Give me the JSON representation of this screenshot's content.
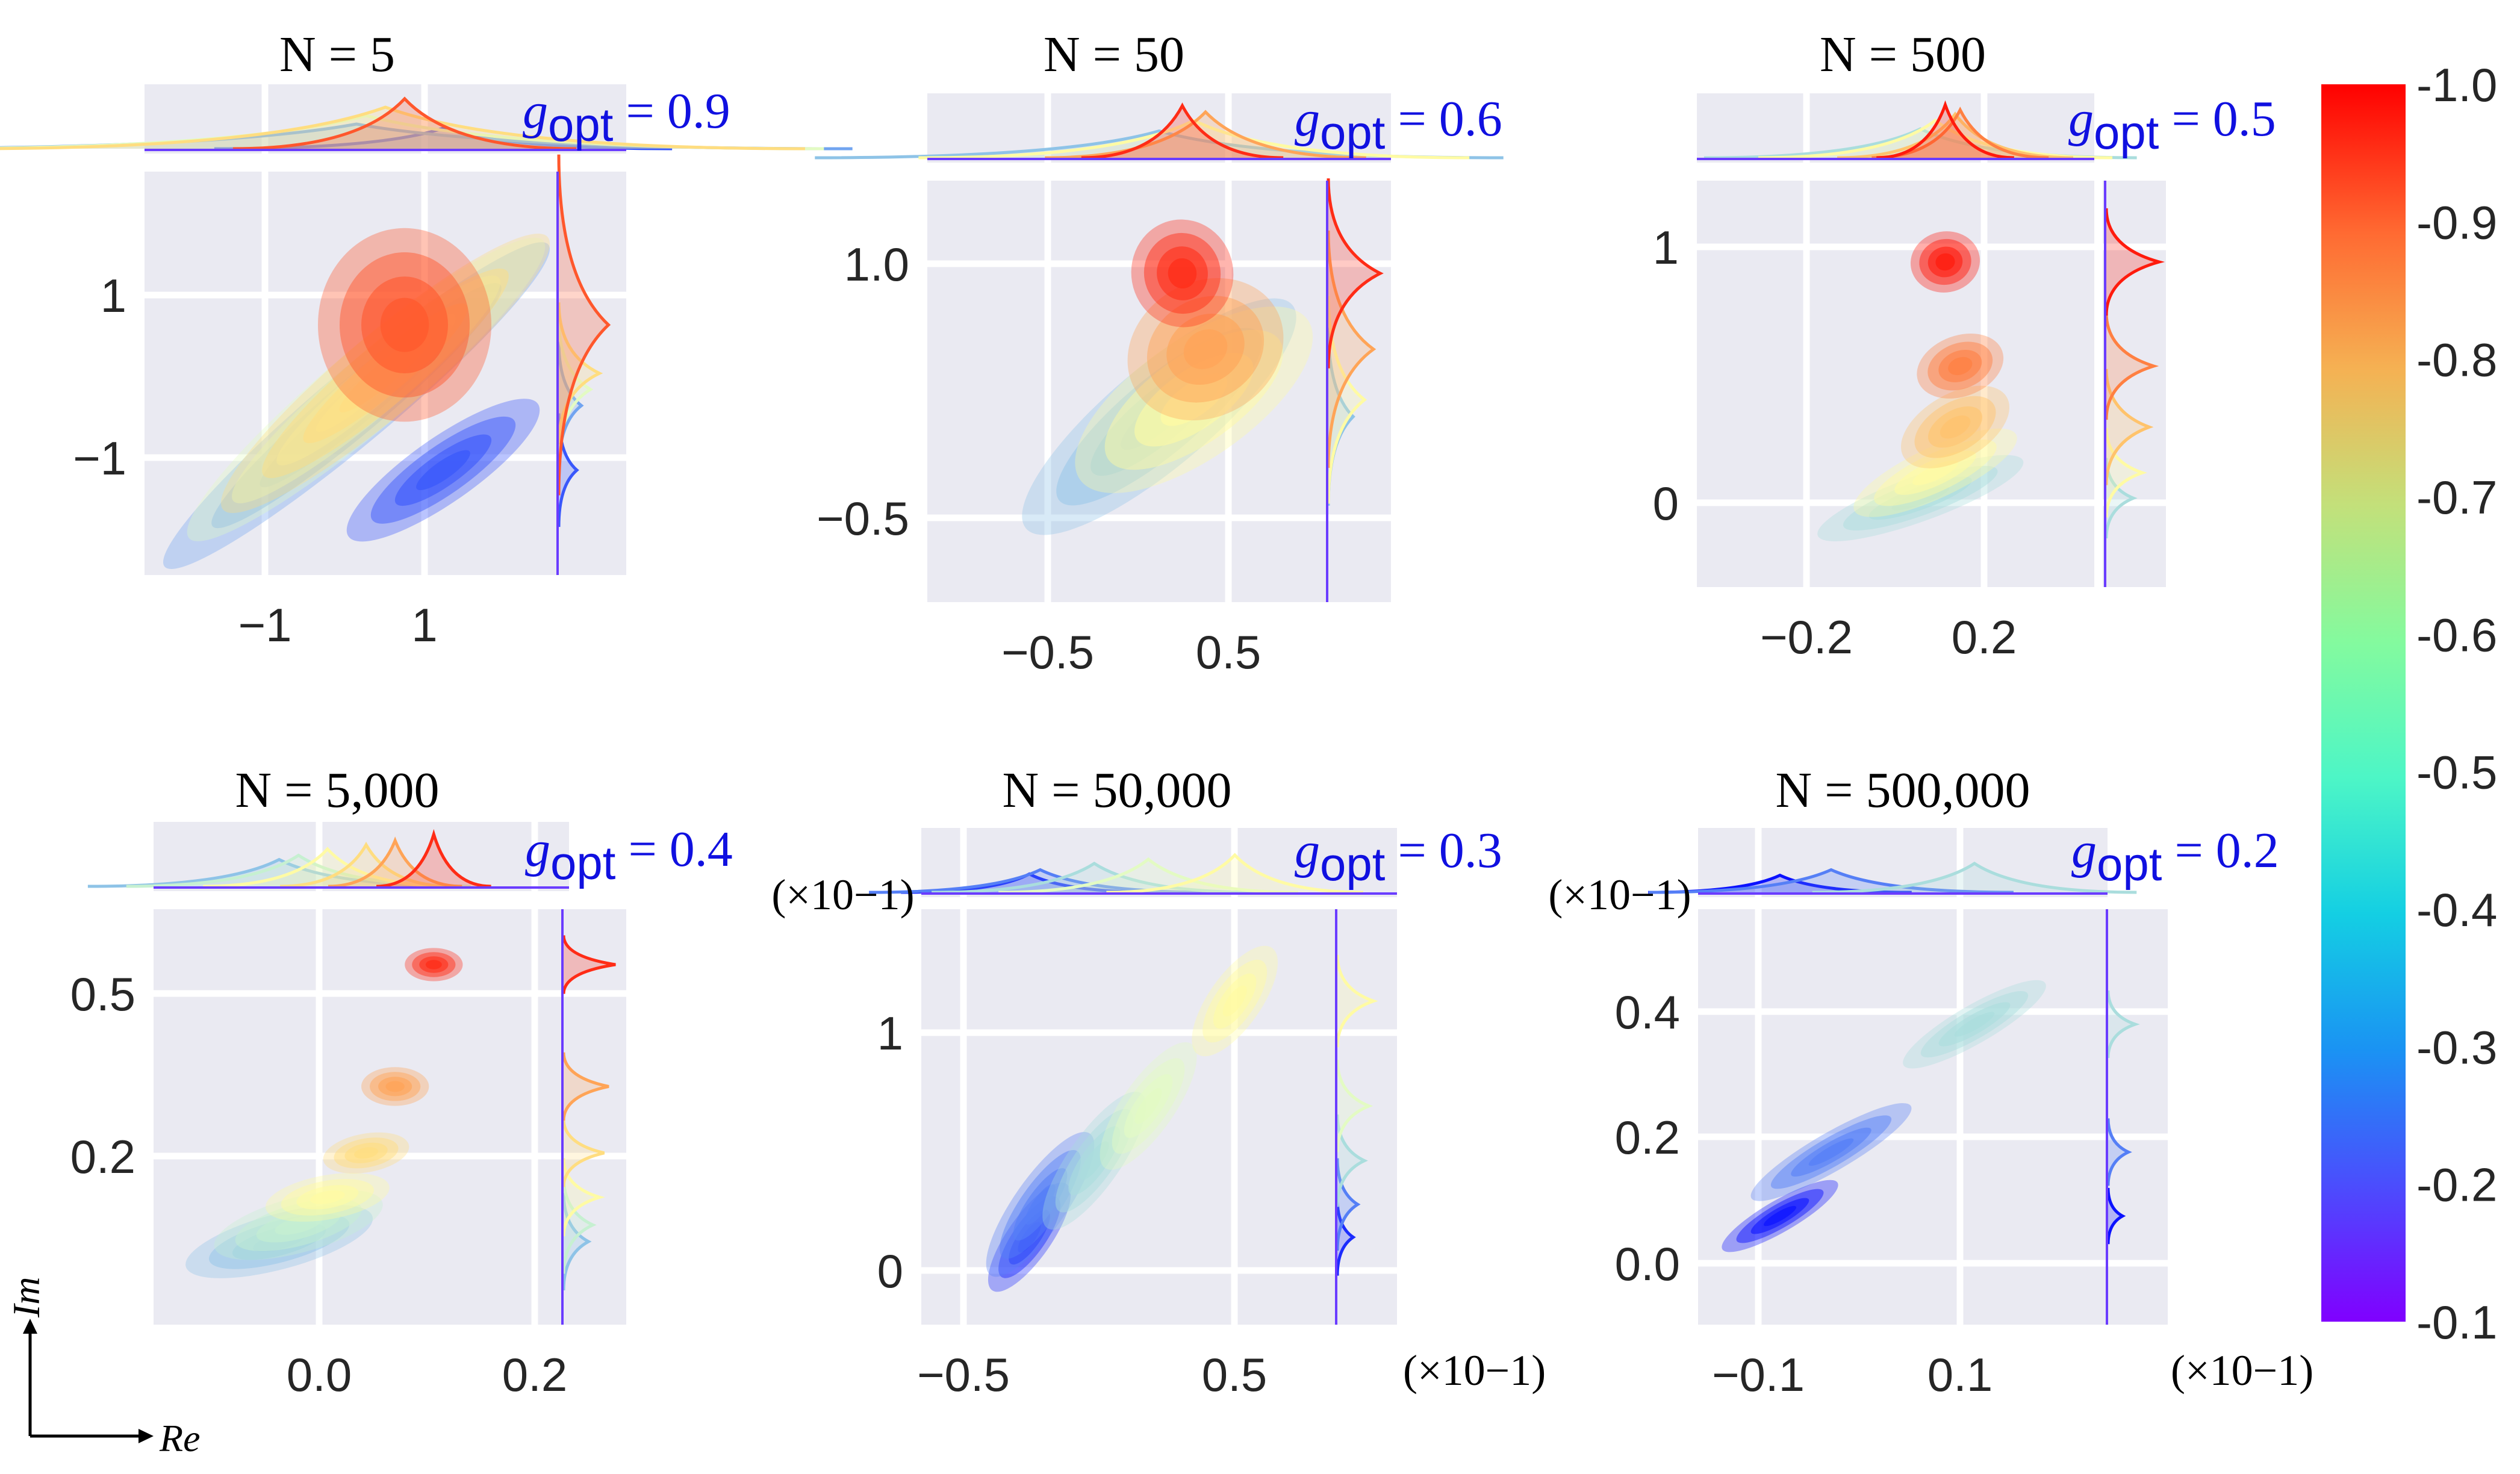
{
  "figure": {
    "axes_label_x": "Re",
    "axes_label_y": "Im",
    "colors": {
      "panel_bg": "#eaeaf2",
      "grid": "#ffffff",
      "annotation": "#1010e0",
      "text": "#262626"
    }
  },
  "colorbar": {
    "ticks": [
      "-1.0",
      "-0.9",
      "-0.8",
      "-0.7",
      "-0.6",
      "-0.5",
      "-0.4",
      "-0.3",
      "-0.2",
      "-0.1"
    ],
    "colormap": "rainbow",
    "range": [
      0.1,
      1.0
    ]
  },
  "chart_data": [
    {
      "type": "density-contour",
      "title": "N = 5",
      "annotation": {
        "g": "g",
        "sub": "opt",
        "eq": " = 0.9"
      },
      "xticks": [
        "−1",
        "1"
      ],
      "yticks": [
        "1",
        "−1"
      ],
      "xlim": [
        -2.5,
        2.5
      ],
      "ylim": [
        -2.5,
        2.5
      ],
      "sci_x": "",
      "sci_y": "",
      "clusters": [
        {
          "g": 0.9,
          "cx": 0.2,
          "cy": 0.6,
          "sx": 0.9,
          "sy": 1.2,
          "rot": 0
        },
        {
          "g": 0.7,
          "cx": 0.0,
          "cy": 0.0,
          "sx": 2.2,
          "sy": 0.5,
          "rot": -40
        },
        {
          "g": 0.5,
          "cx": -0.2,
          "cy": -0.2,
          "sx": 2.4,
          "sy": 0.5,
          "rot": -40
        },
        {
          "g": 0.3,
          "cx": -0.3,
          "cy": -0.4,
          "sx": 2.6,
          "sy": 0.45,
          "rot": -40
        },
        {
          "g": 0.2,
          "cx": 0.6,
          "cy": -1.2,
          "sx": 1.2,
          "sy": 0.4,
          "rot": -35
        }
      ]
    },
    {
      "type": "density-contour",
      "title": "N = 50",
      "annotation": {
        "g": "g",
        "sub": "opt",
        "eq": " = 0.6"
      },
      "xticks": [
        "−0.5",
        "0.5"
      ],
      "yticks": [
        "1.0",
        "−0.5"
      ],
      "xlim": [
        -1.0,
        1.0
      ],
      "ylim": [
        -1.0,
        1.5
      ],
      "sci_x": "",
      "sci_y": "",
      "clusters": [
        {
          "g": 0.95,
          "cx": 0.1,
          "cy": 0.95,
          "sx": 0.22,
          "sy": 0.32,
          "rot": -10
        },
        {
          "g": 0.8,
          "cx": 0.2,
          "cy": 0.5,
          "sx": 0.35,
          "sy": 0.4,
          "rot": -30
        },
        {
          "g": 0.6,
          "cx": 0.15,
          "cy": 0.2,
          "sx": 0.6,
          "sy": 0.35,
          "rot": -35
        },
        {
          "g": 0.35,
          "cx": 0.0,
          "cy": 0.1,
          "sx": 0.75,
          "sy": 0.3,
          "rot": -40
        }
      ]
    },
    {
      "type": "density-contour",
      "title": "N = 500",
      "annotation": {
        "g": "g",
        "sub": "opt",
        "eq": " = 0.5"
      },
      "xticks": [
        "−0.2",
        "0.2"
      ],
      "yticks": [
        "1",
        "0"
      ],
      "xlim": [
        -0.4,
        0.4
      ],
      "ylim": [
        -0.3,
        1.3
      ],
      "sci_x": "",
      "sci_y": "",
      "clusters": [
        {
          "g": 0.97,
          "cx": 0.1,
          "cy": 0.98,
          "sx": 0.07,
          "sy": 0.12,
          "rot": -10
        },
        {
          "g": 0.85,
          "cx": 0.13,
          "cy": 0.57,
          "sx": 0.09,
          "sy": 0.12,
          "rot": -20
        },
        {
          "g": 0.75,
          "cx": 0.12,
          "cy": 0.33,
          "sx": 0.12,
          "sy": 0.13,
          "rot": -30
        },
        {
          "g": 0.6,
          "cx": 0.08,
          "cy": 0.15,
          "sx": 0.18,
          "sy": 0.1,
          "rot": -25
        },
        {
          "g": 0.4,
          "cx": 0.05,
          "cy": 0.05,
          "sx": 0.22,
          "sy": 0.09,
          "rot": -20
        }
      ]
    },
    {
      "type": "density-contour",
      "title": "N = 5,000",
      "annotation": {
        "g": "g",
        "sub": "opt",
        "eq": " = 0.4"
      },
      "xticks": [
        "0.0",
        "0.2"
      ],
      "yticks": [
        "0.5",
        "0.2"
      ],
      "xlim": [
        -0.15,
        0.28
      ],
      "ylim": [
        -0.1,
        0.65
      ],
      "sci_x": "",
      "sci_y": "",
      "clusters": [
        {
          "g": 0.95,
          "cx": 0.14,
          "cy": 0.55,
          "sx": 0.03,
          "sy": 0.03,
          "rot": 0
        },
        {
          "g": 0.8,
          "cx": 0.1,
          "cy": 0.33,
          "sx": 0.035,
          "sy": 0.035,
          "rot": 0
        },
        {
          "g": 0.7,
          "cx": 0.07,
          "cy": 0.21,
          "sx": 0.045,
          "sy": 0.035,
          "rot": -10
        },
        {
          "g": 0.6,
          "cx": 0.03,
          "cy": 0.13,
          "sx": 0.065,
          "sy": 0.04,
          "rot": -10
        },
        {
          "g": 0.45,
          "cx": 0.0,
          "cy": 0.08,
          "sx": 0.09,
          "sy": 0.05,
          "rot": -15
        },
        {
          "g": 0.35,
          "cx": -0.02,
          "cy": 0.05,
          "sx": 0.1,
          "sy": 0.05,
          "rot": -15
        }
      ]
    },
    {
      "type": "density-contour",
      "title": "N = 50,000",
      "annotation": {
        "g": "g",
        "sub": "opt",
        "eq": " = 0.3"
      },
      "xticks": [
        "−0.5",
        "0.5"
      ],
      "yticks": [
        "1",
        "0"
      ],
      "xlim": [
        -1.0,
        1.2
      ],
      "ylim": [
        -0.3,
        1.6
      ],
      "sci_x": "(×10−1)",
      "sci_y": "(×10−1)",
      "clusters": [
        {
          "g": 0.6,
          "cx": 0.45,
          "cy": 1.18,
          "sx": 0.3,
          "sy": 0.12,
          "rot": -55
        },
        {
          "g": 0.5,
          "cx": 0.05,
          "cy": 0.7,
          "sx": 0.35,
          "sy": 0.12,
          "rot": -55
        },
        {
          "g": 0.4,
          "cx": -0.2,
          "cy": 0.45,
          "sx": 0.38,
          "sy": 0.12,
          "rot": -55
        },
        {
          "g": 0.25,
          "cx": -0.45,
          "cy": 0.25,
          "sx": 0.4,
          "sy": 0.12,
          "rot": -55
        },
        {
          "g": 0.15,
          "cx": -0.5,
          "cy": 0.1,
          "sx": 0.3,
          "sy": 0.1,
          "rot": -55
        }
      ]
    },
    {
      "type": "density-contour",
      "title": "N = 500,000",
      "annotation": {
        "g": "g",
        "sub": "opt",
        "eq": " = 0.2"
      },
      "xticks": [
        "−0.1",
        "0.1"
      ],
      "yticks": [
        "0.4",
        "0.2",
        "0.0"
      ],
      "xlim": [
        -0.15,
        0.25
      ],
      "ylim": [
        -0.1,
        0.55
      ],
      "sci_x": "(×10−1)",
      "sci_y": "(×10−1)",
      "clusters": [
        {
          "g": 0.4,
          "cx": 0.12,
          "cy": 0.37,
          "sx": 0.08,
          "sy": 0.03,
          "rot": -30
        },
        {
          "g": 0.25,
          "cx": -0.02,
          "cy": 0.17,
          "sx": 0.09,
          "sy": 0.03,
          "rot": -30
        },
        {
          "g": 0.12,
          "cx": -0.07,
          "cy": 0.07,
          "sx": 0.065,
          "sy": 0.025,
          "rot": -30
        }
      ]
    }
  ]
}
